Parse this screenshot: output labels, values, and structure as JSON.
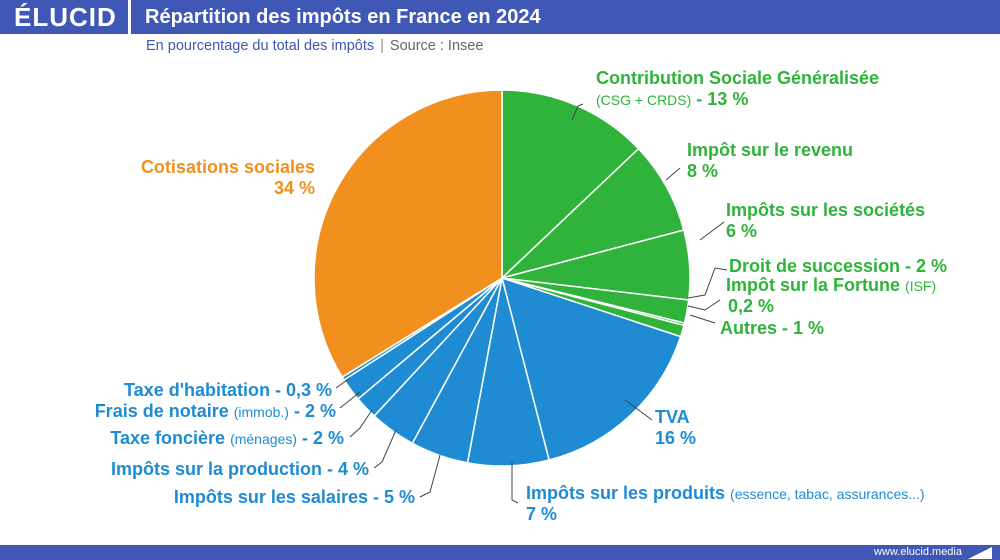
{
  "header": {
    "logo": "ÉLUCID",
    "title": "Répartition des impôts en France en 2024"
  },
  "subtitle": {
    "text": "En pourcentage du total des impôts",
    "separator": "|",
    "source": "Source : Insee"
  },
  "footer": {
    "url": "www.elucid.media"
  },
  "colors": {
    "green": "#2fb33a",
    "orange": "#f2901f",
    "blue": "#1f8bd3",
    "brand": "#3f58b5"
  },
  "labels": {
    "csg_title": "Contribution Sociale Généralisée",
    "csg_detail": "(CSG + CRDS)",
    "csg_value": " - 13 %",
    "ir_title": "Impôt sur le revenu",
    "ir_value": "8 %",
    "is_title": "Impôts sur les sociétés",
    "is_value": "6 %",
    "succession": "Droit de succession - 2 %",
    "isf_title": "Impôt sur la Fortune",
    "isf_detail": "(ISF)",
    "isf_value": "0,2 %",
    "autres": "Autres - 1 %",
    "tva_title": "TVA",
    "tva_value": "16 %",
    "produits_title": "Impôts sur les produits",
    "produits_detail": "(essence, tabac, assurances...)",
    "produits_value": "7 %",
    "salaires": "Impôts sur les salaires - 5 %",
    "production": "Impôts sur la production - 4 %",
    "fonciere_title": "Taxe foncière",
    "fonciere_detail": "(ménages)",
    "fonciere_value": " - 2 %",
    "notaire_title": "Frais de notaire",
    "notaire_detail": "(immob.)",
    "notaire_value": " - 2 %",
    "habitation": "Taxe d'habitation - 0,3 %",
    "cotisations_title": "Cotisations sociales",
    "cotisations_value": "34 %"
  },
  "chart_data": {
    "type": "pie",
    "unit": "%",
    "slices": [
      {
        "name": "Contribution Sociale Généralisée (CSG + CRDS)",
        "value": 13,
        "color": "#2fb33a"
      },
      {
        "name": "Impôt sur le revenu",
        "value": 8,
        "color": "#2fb33a"
      },
      {
        "name": "Impôts sur les sociétés",
        "value": 6,
        "color": "#2fb33a"
      },
      {
        "name": "Droit de succession",
        "value": 2,
        "color": "#2fb33a"
      },
      {
        "name": "Impôt sur la Fortune (ISF)",
        "value": 0.2,
        "color": "#2fb33a"
      },
      {
        "name": "Autres",
        "value": 1,
        "color": "#2fb33a"
      },
      {
        "name": "TVA",
        "value": 16,
        "color": "#1f8bd3"
      },
      {
        "name": "Impôts sur les produits",
        "value": 7,
        "color": "#1f8bd3"
      },
      {
        "name": "Impôts sur les salaires",
        "value": 5,
        "color": "#1f8bd3"
      },
      {
        "name": "Impôts sur la production",
        "value": 4,
        "color": "#1f8bd3"
      },
      {
        "name": "Taxe foncière (ménages)",
        "value": 2,
        "color": "#1f8bd3"
      },
      {
        "name": "Frais de notaire (immob.)",
        "value": 2,
        "color": "#1f8bd3"
      },
      {
        "name": "Taxe d'habitation",
        "value": 0.3,
        "color": "#1f8bd3"
      },
      {
        "name": "Cotisations sociales",
        "value": 34,
        "color": "#f2901f"
      }
    ]
  }
}
